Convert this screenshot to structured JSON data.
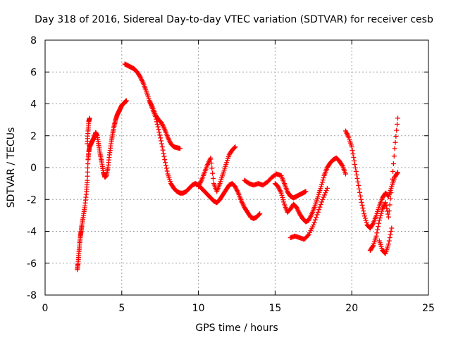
{
  "chart_data": {
    "type": "scatter",
    "title": "Day 318 of 2016, Sidereal Day-to-day VTEC variation (SDTVAR) for receiver cesb",
    "xlabel": "GPS time / hours",
    "ylabel": "SDTVAR / TECUs",
    "xlim": [
      0,
      25
    ],
    "ylim": [
      -8,
      8
    ],
    "xticks": [
      "0",
      "5",
      "10",
      "15",
      "20",
      "25"
    ],
    "yticks": [
      "-8",
      "-6",
      "-4",
      "-2",
      "0",
      "2",
      "4",
      "6",
      "8"
    ],
    "grid": true,
    "marker": "+",
    "color": "#ff0000",
    "series": [
      {
        "x": [
          2.1,
          2.15,
          2.2,
          2.25,
          2.3,
          2.35,
          2.4,
          2.5,
          2.6,
          2.7,
          2.75,
          2.8,
          2.85,
          2.9,
          3.0,
          3.1,
          3.2,
          3.3,
          3.4,
          3.5,
          3.6,
          3.7,
          3.8,
          3.9,
          4.0,
          4.1,
          4.2,
          4.3,
          4.4,
          4.5,
          4.6,
          4.7,
          4.8,
          4.9,
          5.0,
          5.1,
          5.2,
          5.3
        ],
        "y": [
          -6.4,
          -6.0,
          -5.4,
          -4.8,
          -4.3,
          -4.0,
          -3.6,
          -3.0,
          -2.4,
          -1.5,
          -0.8,
          0.5,
          1.0,
          1.3,
          1.5,
          1.7,
          1.9,
          2.2,
          2.0,
          1.4,
          0.8,
          0.3,
          -0.3,
          -0.6,
          -0.5,
          0.0,
          0.8,
          1.5,
          2.1,
          2.6,
          3.0,
          3.3,
          3.5,
          3.7,
          3.9,
          4.0,
          4.1,
          4.2
        ]
      },
      {
        "x": [
          2.75,
          2.8,
          2.85,
          2.9
        ],
        "y": [
          1.5,
          2.3,
          2.9,
          3.1
        ]
      },
      {
        "x": [
          5.2,
          5.4,
          5.6,
          5.8,
          6.0,
          6.2,
          6.4,
          6.6,
          6.8,
          7.0,
          7.2,
          7.4,
          7.6,
          7.8,
          8.0,
          8.2,
          8.4,
          8.6,
          8.8,
          9.0,
          9.2,
          9.4,
          9.6,
          9.8,
          10.0,
          10.2,
          10.4,
          10.6,
          10.8,
          11.0,
          11.2,
          11.4,
          11.6,
          11.8,
          12.0,
          12.2,
          12.4,
          12.6,
          12.8,
          13.0,
          13.2,
          13.4,
          13.6,
          13.8,
          14.0
        ],
        "y": [
          6.5,
          6.4,
          6.3,
          6.2,
          6.0,
          5.7,
          5.3,
          4.8,
          4.2,
          3.7,
          3.2,
          2.4,
          1.5,
          0.5,
          -0.4,
          -1.0,
          -1.3,
          -1.5,
          -1.6,
          -1.6,
          -1.5,
          -1.3,
          -1.1,
          -1.0,
          -1.1,
          -1.3,
          -1.5,
          -1.7,
          -1.9,
          -2.1,
          -2.2,
          -2.0,
          -1.7,
          -1.4,
          -1.1,
          -1.0,
          -1.2,
          -1.6,
          -2.1,
          -2.5,
          -2.8,
          -3.1,
          -3.2,
          -3.1,
          -2.9
        ]
      },
      {
        "x": [
          6.8,
          7.0,
          7.2,
          7.4,
          7.6,
          7.8,
          8.0,
          8.2,
          8.4,
          8.6,
          8.8
        ],
        "y": [
          4.2,
          3.8,
          3.3,
          3.0,
          2.8,
          2.4,
          1.9,
          1.5,
          1.3,
          1.25,
          1.2
        ]
      },
      {
        "x": [
          10.0,
          10.2,
          10.4,
          10.6,
          10.8,
          11.0,
          11.2,
          11.4,
          11.6,
          11.8,
          12.0,
          12.2,
          12.4
        ],
        "y": [
          -1.2,
          -0.8,
          -0.3,
          0.2,
          0.6,
          -1.0,
          -1.5,
          -1.0,
          -0.4,
          0.2,
          0.8,
          1.1,
          1.3
        ]
      },
      {
        "x": [
          13.0,
          13.3,
          13.6,
          13.9,
          14.2,
          14.5,
          14.8,
          15.1,
          15.4,
          15.6,
          15.8,
          16.0,
          16.2,
          16.4,
          16.6,
          16.8,
          17.0
        ],
        "y": [
          -0.8,
          -1.0,
          -1.1,
          -1.0,
          -1.1,
          -0.9,
          -0.6,
          -0.4,
          -0.5,
          -1.0,
          -1.5,
          -1.8,
          -1.9,
          -1.8,
          -1.7,
          -1.6,
          -1.5
        ]
      },
      {
        "x": [
          15.0,
          15.2,
          15.4,
          15.6,
          15.8,
          16.0,
          16.2,
          16.4,
          16.6,
          16.8,
          17.0,
          17.2,
          17.4,
          17.6,
          17.8,
          18.0,
          18.2,
          18.4,
          18.6,
          18.8,
          19.0,
          19.2,
          19.4,
          19.6
        ],
        "y": [
          -1.0,
          -1.2,
          -1.6,
          -2.3,
          -2.8,
          -2.6,
          -2.3,
          -2.5,
          -2.9,
          -3.2,
          -3.4,
          -3.3,
          -2.9,
          -2.4,
          -1.8,
          -1.2,
          -0.5,
          0.0,
          0.3,
          0.5,
          0.6,
          0.4,
          0.1,
          -0.4
        ]
      },
      {
        "x": [
          16.0,
          16.3,
          16.6,
          16.9,
          17.2,
          17.5,
          17.8,
          18.1,
          18.4
        ],
        "y": [
          -4.4,
          -4.3,
          -4.4,
          -4.5,
          -4.2,
          -3.6,
          -2.8,
          -2.0,
          -1.3
        ]
      },
      {
        "x": [
          19.6,
          19.8,
          20.0,
          20.2,
          20.4,
          20.6,
          20.8,
          21.0,
          21.2,
          21.4,
          21.6,
          21.8,
          22.0,
          22.2,
          22.4,
          22.6,
          22.8,
          23.0
        ],
        "y": [
          2.3,
          1.9,
          1.3,
          0.2,
          -0.9,
          -2.0,
          -2.9,
          -3.6,
          -3.8,
          -3.5,
          -3.0,
          -2.4,
          -1.9,
          -1.6,
          -1.8,
          -1.2,
          -0.6,
          -0.3
        ]
      },
      {
        "x": [
          21.2,
          21.4,
          21.6,
          21.8,
          22.0,
          22.2,
          22.4,
          22.6,
          22.8,
          23.0
        ],
        "y": [
          -5.2,
          -4.9,
          -4.3,
          -3.3,
          -2.6,
          -2.2,
          -3.1,
          -1.2,
          1.2,
          3.1
        ]
      },
      {
        "x": [
          21.8,
          22.0,
          22.2,
          22.4,
          22.6
        ],
        "y": [
          -4.6,
          -5.2,
          -5.4,
          -4.8,
          -3.8
        ]
      }
    ]
  }
}
